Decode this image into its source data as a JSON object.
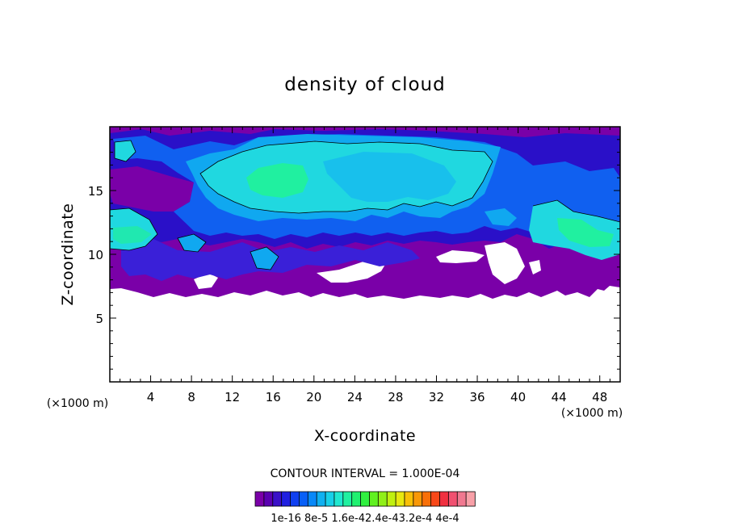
{
  "chart_data": {
    "type": "heatmap",
    "title": "density of cloud",
    "xlabel": "X-coordinate",
    "ylabel": "Z-coordinate",
    "x_unit": "(×1000 m)",
    "z_unit": "(×1000 m)",
    "xlim": [
      0,
      50
    ],
    "ylim": [
      0,
      20
    ],
    "x_ticks": [
      4,
      8,
      12,
      16,
      20,
      24,
      28,
      32,
      36,
      40,
      44,
      48
    ],
    "y_ticks": [
      5,
      10,
      15
    ],
    "contour_interval": "CONTOUR INTERVAL = 1.000E-04",
    "colorbar_labels": [
      "1e-16",
      "8e-5",
      "1.6e-4",
      "2.4e-4",
      "3.2e-4",
      "4e-4"
    ],
    "colorbar_label_text": "1e-16  8e-5  1.6e-42.4e-43.2e-4  4e-4",
    "colorbar_colors": [
      "#7a00a8",
      "#5a00b0",
      "#3a10c8",
      "#2020e0",
      "#1040f0",
      "#0860f8",
      "#0888f8",
      "#10b0f0",
      "#18d0e8",
      "#20e8d0",
      "#20f0a0",
      "#20f070",
      "#30f040",
      "#60f020",
      "#90f018",
      "#c0f010",
      "#e8e810",
      "#f8c008",
      "#f89808",
      "#f87008",
      "#f84818",
      "#f03040",
      "#f05070",
      "#f07890",
      "#f8a0a8"
    ],
    "field_description_levels": {
      "purple": 1e-16,
      "blue": 4e-05,
      "cyan": 0.0001,
      "green": 0.00015
    }
  }
}
